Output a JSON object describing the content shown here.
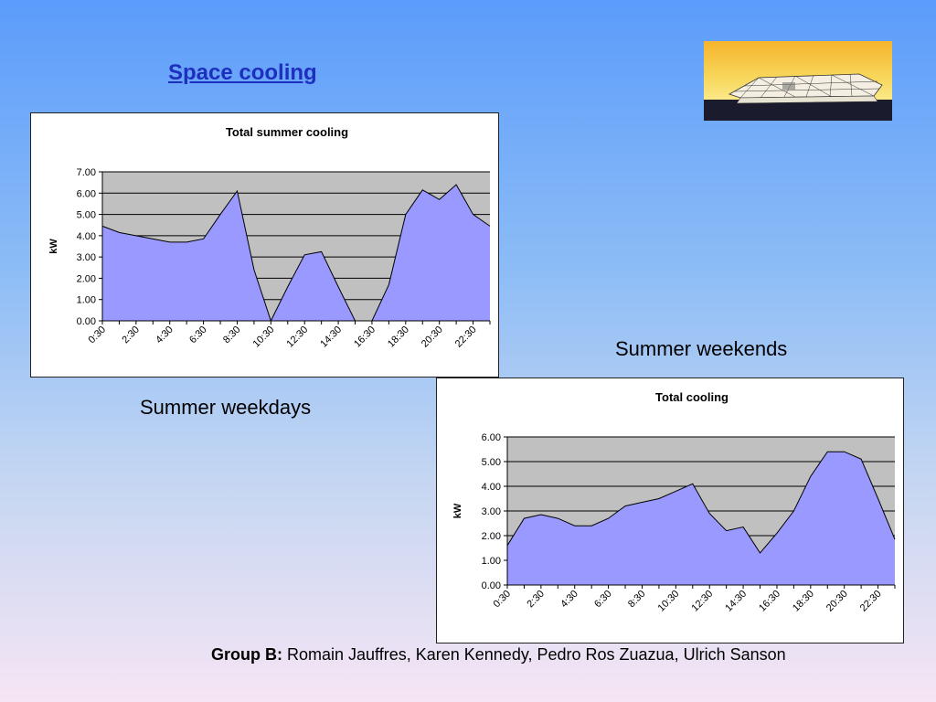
{
  "slide": {
    "title": "Space cooling",
    "caption_weekdays": "Summer weekdays",
    "caption_weekends": "Summer weekends",
    "footer_group": "Group B:",
    "footer_names": " Romain Jauffres, Karen Kennedy, Pedro Ros Zuazua, Ulrich Sanson"
  },
  "colors": {
    "area_fill": "#9999ff",
    "plot_bg": "#c0c0c0",
    "title_color": "#1e2fbf"
  },
  "chart_data": [
    {
      "type": "area",
      "title": "Total summer cooling",
      "xlabel": "",
      "ylabel": "kW",
      "ylim": [
        0,
        7
      ],
      "yticks": [
        "0.00",
        "1.00",
        "2.00",
        "3.00",
        "4.00",
        "5.00",
        "6.00",
        "7.00"
      ],
      "x": [
        "0:30",
        "1:30",
        "2:30",
        "3:30",
        "4:30",
        "5:30",
        "6:30",
        "7:30",
        "8:30",
        "9:30",
        "10:30",
        "11:30",
        "12:30",
        "13:30",
        "14:30",
        "15:30",
        "16:30",
        "17:30",
        "18:30",
        "19:30",
        "20:30",
        "21:30",
        "22:30",
        "23:30"
      ],
      "xtick_labels": [
        "0:30",
        "2:30",
        "4:30",
        "6:30",
        "8:30",
        "10:30",
        "12:30",
        "14:30",
        "16:30",
        "18:30",
        "20:30",
        "22:30"
      ],
      "values": [
        4.45,
        4.15,
        4.0,
        3.85,
        3.7,
        3.7,
        3.85,
        5.0,
        6.1,
        2.4,
        0.0,
        1.6,
        3.1,
        3.25,
        1.6,
        0.0,
        0.0,
        1.7,
        5.0,
        6.15,
        5.7,
        6.4,
        5.0,
        4.45
      ],
      "grid": true,
      "legend": false
    },
    {
      "type": "area",
      "title": "Total cooling",
      "xlabel": "",
      "ylabel": "kW",
      "ylim": [
        0,
        6
      ],
      "yticks": [
        "0.00",
        "1.00",
        "2.00",
        "3.00",
        "4.00",
        "5.00",
        "6.00"
      ],
      "x": [
        "0:30",
        "1:30",
        "2:30",
        "3:30",
        "4:30",
        "5:30",
        "6:30",
        "7:30",
        "8:30",
        "9:30",
        "10:30",
        "11:30",
        "12:30",
        "13:30",
        "14:30",
        "15:30",
        "16:30",
        "17:30",
        "18:30",
        "19:30",
        "20:30",
        "21:30",
        "22:30",
        "23:30"
      ],
      "xtick_labels": [
        "0:30",
        "2:30",
        "4:30",
        "6:30",
        "8:30",
        "10:30",
        "12:30",
        "14:30",
        "16:30",
        "18:30",
        "20:30",
        "22:30"
      ],
      "values": [
        1.6,
        2.7,
        2.85,
        2.7,
        2.4,
        2.4,
        2.7,
        3.2,
        3.35,
        3.5,
        3.8,
        4.1,
        2.9,
        2.2,
        2.35,
        1.3,
        2.1,
        3.0,
        4.4,
        5.4,
        5.4,
        5.1,
        3.5,
        1.85
      ],
      "grid": true,
      "legend": false
    }
  ]
}
